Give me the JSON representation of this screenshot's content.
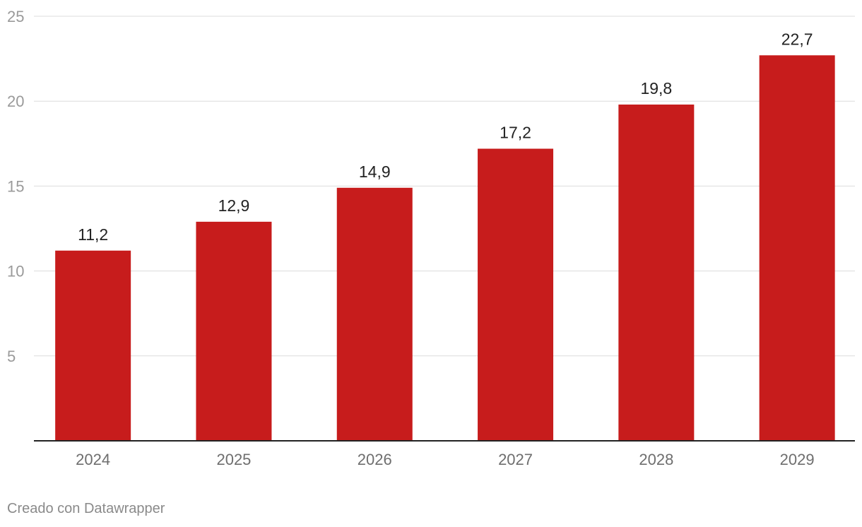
{
  "chart_data": {
    "type": "bar",
    "categories": [
      "2024",
      "2025",
      "2026",
      "2027",
      "2028",
      "2029"
    ],
    "values": [
      11.2,
      12.9,
      14.9,
      17.2,
      19.8,
      22.7
    ],
    "value_labels": [
      "11,2",
      "12,9",
      "14,9",
      "17,2",
      "19,8",
      "22,7"
    ],
    "ylim": [
      0,
      25
    ],
    "yticks": [
      5,
      10,
      15,
      20,
      25
    ],
    "grid": true,
    "bar_color": "#c71c1c",
    "title": "",
    "xlabel": "",
    "ylabel": ""
  },
  "credit": "Creado con Datawrapper"
}
